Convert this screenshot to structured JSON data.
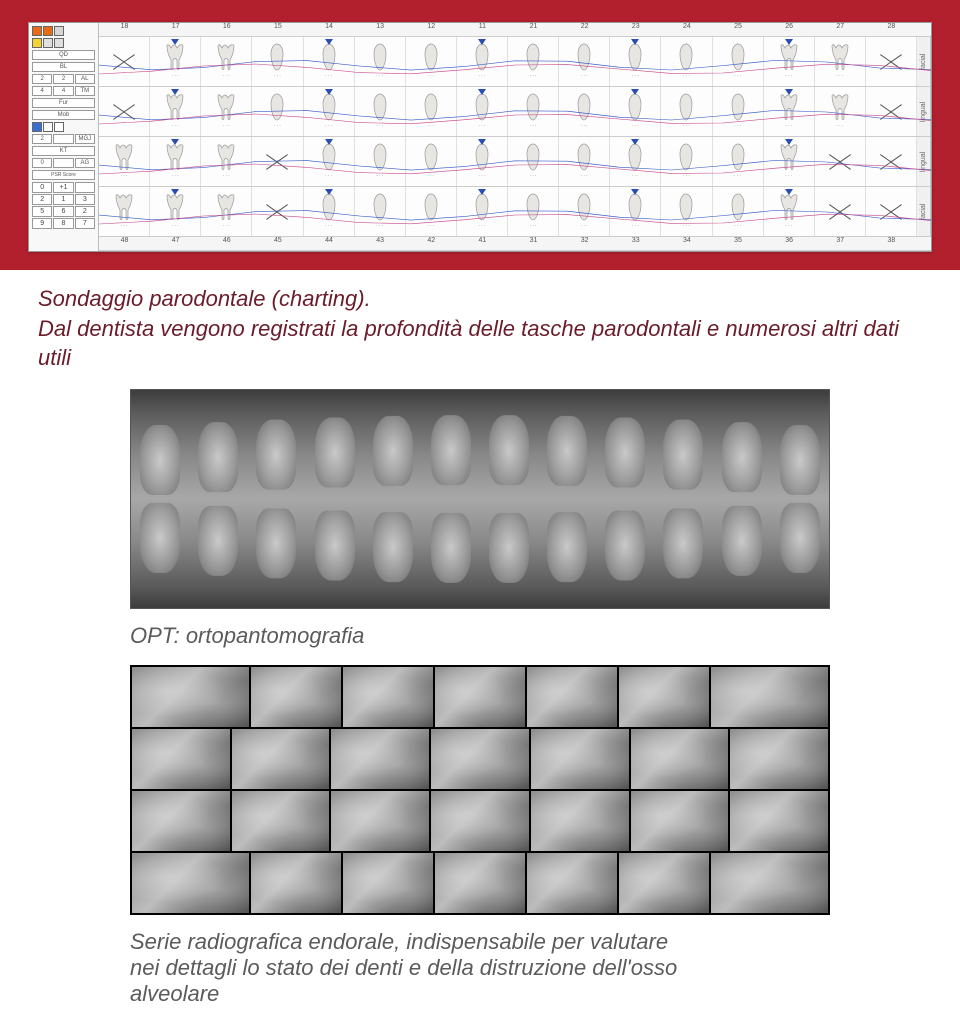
{
  "chart": {
    "tooth_numbers_upper": [
      "18",
      "17",
      "16",
      "15",
      "14",
      "13",
      "12",
      "11",
      "21",
      "22",
      "23",
      "24",
      "25",
      "26",
      "27",
      "28"
    ],
    "tooth_numbers_lower": [
      "48",
      "47",
      "46",
      "45",
      "44",
      "43",
      "42",
      "41",
      "31",
      "32",
      "33",
      "34",
      "35",
      "36",
      "37",
      "38"
    ],
    "row_labels": [
      "facial",
      "lingual",
      "lingual",
      "facial"
    ],
    "missing_positions": {
      "row0": [
        0,
        15
      ],
      "row1": [
        0,
        15
      ],
      "row2": [
        3,
        14,
        15
      ],
      "row3": [
        3,
        14,
        15
      ]
    },
    "left_panel": {
      "color_swatches": [
        "#e86b1c",
        "#e86b1c",
        "#d6d6d6",
        "#f3d333",
        "#e0e0e0",
        "#e0e0e0"
      ],
      "labels": [
        "QD",
        "BL",
        "AL",
        "TM",
        "Fur",
        "Mob",
        "MGJ",
        "KT",
        "AG",
        "PSR Score"
      ],
      "small_values_1": [
        "2",
        "2",
        "4",
        "4",
        "2",
        "0"
      ],
      "psr_values": [
        "0",
        "+1",
        " ",
        "2",
        "1",
        "3",
        "5",
        "6",
        "2",
        "9",
        "8",
        "7"
      ],
      "blue_selected": true
    },
    "probe_line_colors": {
      "blue": "#3a5cc8",
      "red": "#c94a8a"
    },
    "marker_colors": {
      "down_triangle": "#2a4db0",
      "diamond_red": "#c23b2b"
    },
    "tooth_fill": "#e8e6e2",
    "tooth_stroke": "#9a9a9a",
    "background": "#ffffff"
  },
  "captions": {
    "caption1": "Sondaggio parodontale (charting).",
    "caption1b": "Dal dentista vengono registrati la profondità delle tasche parodontali e numerosi altri dati utili",
    "caption2": "OPT: ortopantomografia",
    "caption3a": "Serie radiografica endorale, indispensabile per valutare",
    "caption3b": "nei dettagli lo stato dei denti e della distruzione dell'osso",
    "caption3c": "alveolare"
  },
  "colors": {
    "band_red": "#b21f2d",
    "caption1_color": "#6a1c2a",
    "caption_gray": "#5b5b5b",
    "page_bg": "#ffffff"
  },
  "opt": {
    "tooth_count_upper": 12,
    "tooth_count_lower": 12,
    "bg_gradient": [
      "#3d3d3d",
      "#5a5a5a",
      "#888888",
      "#a8a8a8",
      "#888888",
      "#5a5a5a",
      "#3d3d3d"
    ]
  },
  "endoral": {
    "rows": 4,
    "cols": 7,
    "black_row_heights": [
      60,
      60,
      60,
      60
    ],
    "cell_bg": "#8e8e8e"
  }
}
